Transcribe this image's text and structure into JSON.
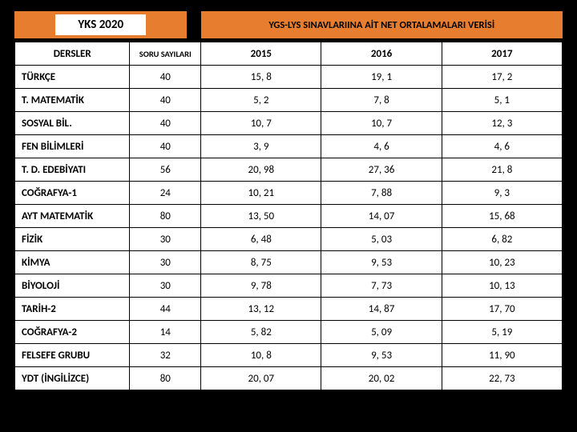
{
  "header": {
    "left_title": "YKS 2020",
    "right_title": "YGS-LYS SINAVLARIINA AİT NET ORTALAMALARI VERİSİ"
  },
  "colors": {
    "accent": "#e77d2e",
    "page_bg": "#000000",
    "table_bg": "#ffffff",
    "border": "#000000",
    "text": "#000000"
  },
  "table": {
    "column_widths_pct": [
      21,
      13,
      22,
      22,
      22
    ],
    "columns": [
      "DERSLER",
      "SORU SAYILARI",
      "2015",
      "2016",
      "2017"
    ],
    "rows": [
      [
        "TÜRKÇE",
        "40",
        "15, 8",
        "19, 1",
        "17, 2"
      ],
      [
        "T. MATEMATİK",
        "40",
        "5, 2",
        "7, 8",
        "5, 1"
      ],
      [
        "SOSYAL BİL.",
        "40",
        "10, 7",
        "10, 7",
        "12, 3"
      ],
      [
        "FEN BİLİMLERİ",
        "40",
        "3, 9",
        "4, 6",
        "4, 6"
      ],
      [
        "T. D. EDEBİYATI",
        "56",
        "20, 98",
        "27, 36",
        "21, 8"
      ],
      [
        "COĞRAFYA-1",
        "24",
        "10, 21",
        "7, 88",
        "9, 3"
      ],
      [
        "AYT MATEMATİK",
        "80",
        "13, 50",
        "14, 07",
        "15, 68"
      ],
      [
        "FİZİK",
        "30",
        "6, 48",
        "5, 03",
        "6, 82"
      ],
      [
        "KİMYA",
        "30",
        "8, 75",
        "9, 53",
        "10, 23"
      ],
      [
        "BİYOLOJİ",
        "30",
        "9, 78",
        "7, 73",
        "10, 13"
      ],
      [
        "TARİH-2",
        "44",
        "13, 12",
        "14, 87",
        "17, 70"
      ],
      [
        "COĞRAFYA-2",
        "14",
        "5, 82",
        "5, 09",
        "5, 19"
      ],
      [
        "FELSEFE GRUBU",
        "32",
        "10, 8",
        "9, 53",
        "11, 90"
      ],
      [
        "YDT (İNGİLİZCE)",
        "80",
        "20, 07",
        "20, 02",
        "22, 73"
      ]
    ]
  }
}
